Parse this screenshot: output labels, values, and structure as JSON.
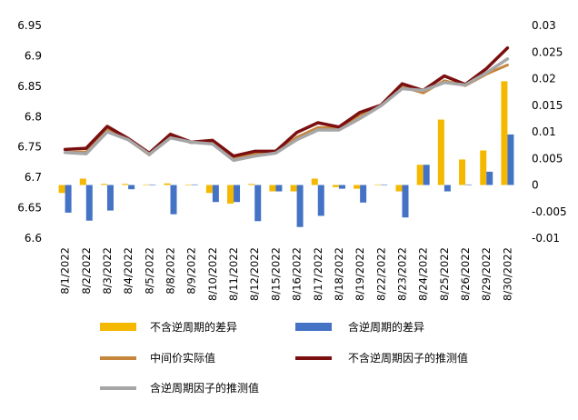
{
  "chart_data": {
    "type": "bar+line",
    "categories": [
      "8/1/2022",
      "8/2/2022",
      "8/3/2022",
      "8/4/2022",
      "8/5/2022",
      "8/8/2022",
      "8/9/2022",
      "8/10/2022",
      "8/11/2022",
      "8/12/2022",
      "8/15/2022",
      "8/16/2022",
      "8/17/2022",
      "8/18/2022",
      "8/19/2022",
      "8/22/2022",
      "8/23/2022",
      "8/24/2022",
      "8/25/2022",
      "8/26/2022",
      "8/29/2022",
      "8/30/2022"
    ],
    "y_left": {
      "min": 6.6,
      "max": 6.95,
      "ticks": [
        "6.6",
        "6.65",
        "6.7",
        "6.75",
        "6.8",
        "6.85",
        "6.9",
        "6.95"
      ]
    },
    "y_right": {
      "min": -0.01,
      "max": 0.03,
      "ticks": [
        "-0.01",
        "-0.005",
        "0",
        "0.005",
        "0.01",
        "0.015",
        "0.02",
        "0.025",
        "0.03"
      ]
    },
    "bar_series": [
      {
        "name": "不含逆周期的差异",
        "color": "#F5B800",
        "axis": "right",
        "values": [
          -0.0015,
          0.0012,
          0.0002,
          0.0002,
          0.0001,
          0.0003,
          0.0001,
          -0.0015,
          -0.0035,
          0.0002,
          -0.0012,
          -0.0012,
          0.0012,
          -0.0004,
          -0.0007,
          0.0001,
          -0.0012,
          0.0038,
          0.0123,
          0.0048,
          0.0065,
          0.0195
        ]
      },
      {
        "name": "含逆周期的差异",
        "color": "#4472C4",
        "axis": "right",
        "values": [
          -0.0052,
          -0.0067,
          -0.0048,
          -0.0008,
          0.0001,
          -0.0055,
          0.0001,
          -0.0032,
          -0.0032,
          -0.0068,
          -0.0012,
          -0.0079,
          -0.0058,
          -0.0007,
          -0.0033,
          0.0001,
          -0.0061,
          0.0038,
          -0.0012,
          0.0001,
          0.0025,
          0.0095
        ]
      }
    ],
    "line_series": [
      {
        "name": "中间价实际值",
        "color": "#C5853B",
        "width": 3,
        "axis": "left",
        "values": [
          6.741,
          6.742,
          6.779,
          6.762,
          6.737,
          6.767,
          6.757,
          6.759,
          6.731,
          6.739,
          6.74,
          6.766,
          6.782,
          6.781,
          6.803,
          6.819,
          6.849,
          6.839,
          6.859,
          6.851,
          6.87,
          6.885
        ]
      },
      {
        "name": "不含逆周期因子的推测值",
        "color": "#7B0F0F",
        "width": 3.5,
        "axis": "left",
        "values": [
          6.746,
          6.748,
          6.784,
          6.764,
          6.74,
          6.771,
          6.758,
          6.761,
          6.735,
          6.743,
          6.743,
          6.774,
          6.79,
          6.783,
          6.807,
          6.819,
          6.854,
          6.843,
          6.867,
          6.853,
          6.879,
          6.913
        ]
      },
      {
        "name": "含逆周期因子的推测值",
        "color": "#A6A6A6",
        "width": 3.5,
        "axis": "left",
        "values": [
          6.741,
          6.739,
          6.775,
          6.762,
          6.738,
          6.765,
          6.758,
          6.755,
          6.728,
          6.735,
          6.74,
          6.762,
          6.778,
          6.778,
          6.797,
          6.818,
          6.846,
          6.843,
          6.856,
          6.852,
          6.872,
          6.895
        ]
      }
    ],
    "legend_position": "bottom",
    "grid": false
  },
  "legend": [
    {
      "label": "不含逆周期的差异",
      "color": "#F5B800"
    },
    {
      "label": "含逆周期的差异",
      "color": "#4472C4"
    },
    {
      "label": "中间价实际值",
      "color": "#C5853B"
    },
    {
      "label": "不含逆周期因子的推测值",
      "color": "#7B0F0F"
    },
    {
      "label": "含逆周期因子的推测值",
      "color": "#A6A6A6"
    }
  ]
}
